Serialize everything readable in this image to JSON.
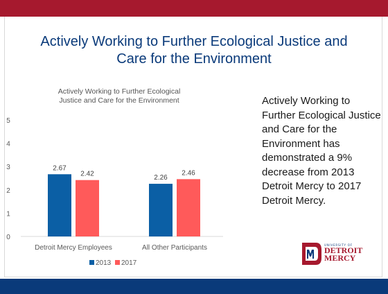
{
  "slide": {
    "title_lines": [
      "Actively Working to Further Ecological Justice and",
      "Care for the Environment"
    ],
    "summary": "Actively Working to Further Ecological Justice and Care for the Environment has demonstrated a 9% decrease from 2013 Detroit Mercy to 2017 Detroit Mercy.",
    "colors": {
      "top_bar": "#a6192e",
      "bottom_bar": "#0a3a7a",
      "title": "#0a3a7a"
    }
  },
  "logo": {
    "small_text": "UNIVERSITY OF",
    "line1": "DETROIT",
    "line2": "MERCY"
  },
  "chart_data": {
    "type": "bar",
    "title_lines": [
      "Actively Working to Further Ecological",
      "Justice and Care for the Environment"
    ],
    "categories": [
      "Detroit Mercy Employees",
      "All Other Participants"
    ],
    "series": [
      {
        "name": "2013",
        "color": "#0b5fa5",
        "values": [
          2.67,
          2.26
        ],
        "labels": [
          "2.67",
          "2.26"
        ]
      },
      {
        "name": "2017",
        "color": "#ff5a5a",
        "values": [
          2.42,
          2.46
        ],
        "labels": [
          "2.42",
          "2.46"
        ]
      }
    ],
    "ylim": [
      0,
      5
    ],
    "yticks": [
      "0",
      "1",
      "2",
      "3",
      "4",
      "5"
    ],
    "legend": "bottom",
    "grid": false
  }
}
